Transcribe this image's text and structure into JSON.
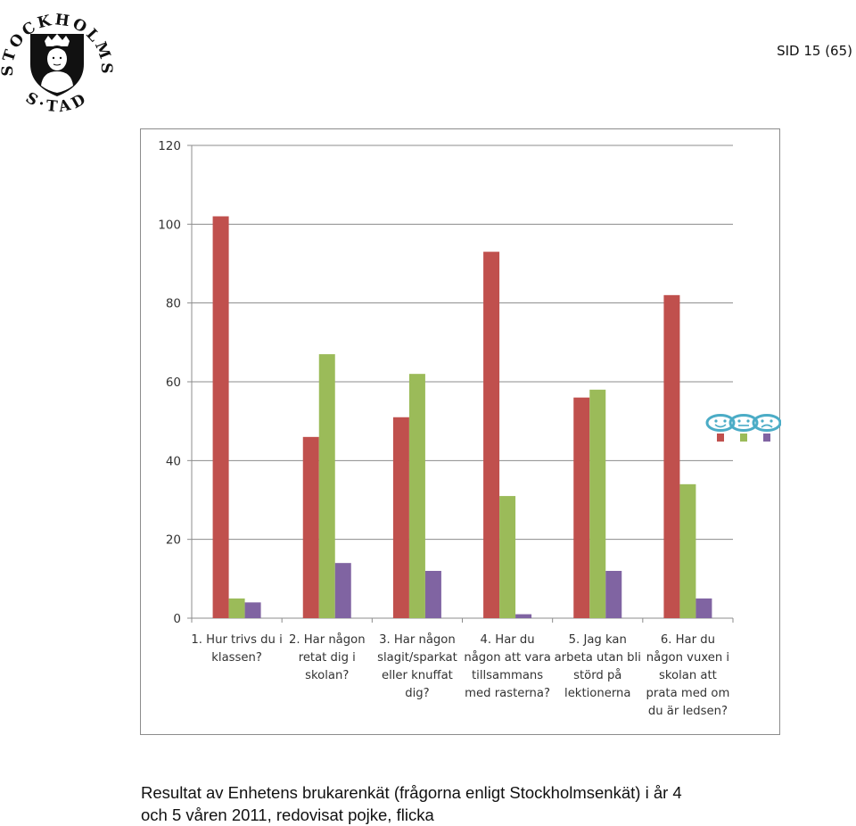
{
  "header": {
    "logo_text": "STOCKHOLMS STAD",
    "page_number": "SID 15 (65)"
  },
  "colors": {
    "series_red": "#c0504d",
    "series_green": "#9bbb59",
    "series_purple": "#8064a2",
    "legend_face": "#4bacc6"
  },
  "legend_icons": [
    "happy-face-icon",
    "neutral-face-icon",
    "sad-face-icon"
  ],
  "chart_data": {
    "type": "bar",
    "categories": [
      [
        "1. Hur trivs du i",
        "klassen?"
      ],
      [
        "2. Har någon",
        "retat dig i",
        "skolan?"
      ],
      [
        "3. Har någon",
        "slagit/sparkat",
        "eller knuffat",
        "dig?"
      ],
      [
        "4. Har du",
        "någon att vara",
        "tillsammans",
        "med rasterna?"
      ],
      [
        "5. Jag kan",
        "arbeta utan bli",
        "störd på",
        "lektionerna"
      ],
      [
        "6. Har du",
        "någon vuxen i",
        "skolan att",
        "prata med om",
        "du är ledsen?"
      ]
    ],
    "series": [
      {
        "values": [
          102,
          46,
          51,
          93,
          56,
          82
        ]
      },
      {
        "values": [
          5,
          67,
          62,
          31,
          58,
          34
        ]
      },
      {
        "values": [
          4,
          14,
          12,
          1,
          12,
          5
        ]
      }
    ],
    "ylim": [
      0,
      120
    ],
    "yticks": [
      0,
      20,
      40,
      60,
      80,
      100,
      120
    ],
    "grid": true,
    "legend_position": "right"
  },
  "caption": {
    "line1": "Resultat av Enhetens brukarenkät (frågorna enligt Stockholmsenkät) i år 4",
    "line2": "och 5 våren 2011, redovisat pojke, flicka"
  }
}
